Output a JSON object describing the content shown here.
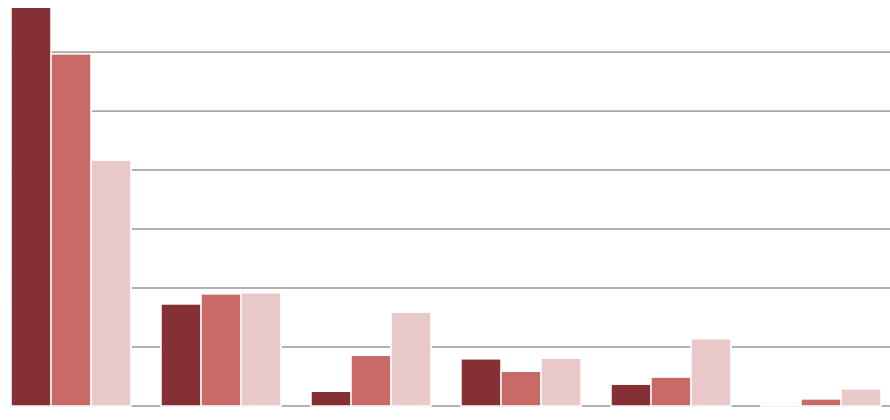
{
  "chart_data": {
    "type": "bar",
    "categories": [
      null,
      null,
      null,
      null,
      null,
      null
    ],
    "series": [
      {
        "color": "#843034",
        "values": [
          6.76,
          1.73,
          0.25,
          0.8,
          0.37,
          0.02
        ]
      },
      {
        "color": "#c76a68",
        "values": [
          5.97,
          1.9,
          0.86,
          0.59,
          0.49,
          0.12
        ]
      },
      {
        "color": "#e8c8c9",
        "values": [
          4.17,
          1.92,
          1.59,
          0.81,
          1.14,
          0.29
        ]
      }
    ],
    "ylim": [
      0,
      6.9
    ],
    "yticks": [
      0,
      1,
      2,
      3,
      4,
      5,
      6
    ],
    "grid": true
  }
}
